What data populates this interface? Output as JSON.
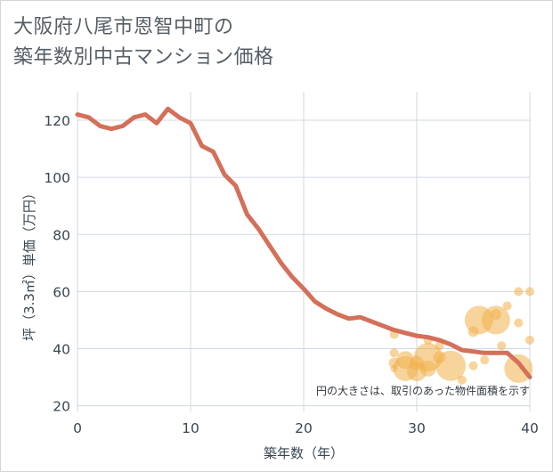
{
  "title_line1": "大阪府八尾市恩智中町の",
  "title_line2": "築年数別中古マンション価格",
  "chart_data": {
    "type": "line+scatter",
    "xlabel": "築年数（年）",
    "ylabel": "坪（3.3㎡）単価（万円）",
    "xlim": [
      0,
      40
    ],
    "ylim": [
      18,
      130
    ],
    "xticks": [
      0,
      10,
      20,
      30,
      40
    ],
    "yticks": [
      20,
      40,
      60,
      80,
      100,
      120
    ],
    "grid": true,
    "annotation": "円の大きさは、取引のあった物件面積を示す",
    "line_color": "#d4705a",
    "bubble_color": "#f0b04a",
    "line": {
      "x": [
        0,
        1,
        2,
        3,
        4,
        5,
        6,
        7,
        8,
        9,
        10,
        11,
        12,
        13,
        14,
        15,
        16,
        17,
        18,
        19,
        20,
        21,
        22,
        23,
        24,
        25,
        26,
        27,
        28,
        29,
        30,
        31,
        32,
        33,
        34,
        35,
        36,
        37,
        38,
        39,
        40
      ],
      "y": [
        122,
        121,
        118,
        117,
        118,
        121,
        122,
        119,
        124,
        121,
        119,
        111,
        109,
        101,
        97,
        87,
        82,
        76,
        70,
        65,
        61,
        56.5,
        54,
        52,
        50.5,
        51,
        49.5,
        48,
        46.5,
        45.5,
        44.5,
        44,
        43,
        41.5,
        39.5,
        39,
        38.5,
        38.5,
        38.5,
        35,
        30
      ]
    },
    "bubbles": [
      {
        "x": 28,
        "y": 45,
        "size": 5
      },
      {
        "x": 28,
        "y": 38.5,
        "size": 5
      },
      {
        "x": 28,
        "y": 35,
        "size": 6
      },
      {
        "x": 28,
        "y": 33,
        "size": 4
      },
      {
        "x": 29,
        "y": 36,
        "size": 10
      },
      {
        "x": 29,
        "y": 33,
        "size": 14
      },
      {
        "x": 30,
        "y": 32,
        "size": 11
      },
      {
        "x": 30,
        "y": 35,
        "size": 8
      },
      {
        "x": 31,
        "y": 37,
        "size": 16
      },
      {
        "x": 31,
        "y": 43,
        "size": 5
      },
      {
        "x": 31,
        "y": 33,
        "size": 9
      },
      {
        "x": 32,
        "y": 41,
        "size": 5
      },
      {
        "x": 32,
        "y": 37,
        "size": 7
      },
      {
        "x": 33,
        "y": 34,
        "size": 17
      },
      {
        "x": 34,
        "y": 29,
        "size": 5
      },
      {
        "x": 35,
        "y": 46,
        "size": 6
      },
      {
        "x": 35,
        "y": 34,
        "size": 5
      },
      {
        "x": 35.5,
        "y": 50,
        "size": 16
      },
      {
        "x": 36,
        "y": 36,
        "size": 5
      },
      {
        "x": 37,
        "y": 50,
        "size": 16
      },
      {
        "x": 37,
        "y": 52,
        "size": 6
      },
      {
        "x": 37.5,
        "y": 41,
        "size": 5
      },
      {
        "x": 38,
        "y": 55,
        "size": 5
      },
      {
        "x": 39,
        "y": 60,
        "size": 5
      },
      {
        "x": 39,
        "y": 49,
        "size": 5
      },
      {
        "x": 39,
        "y": 33,
        "size": 16
      },
      {
        "x": 40,
        "y": 60,
        "size": 5
      },
      {
        "x": 40,
        "y": 43,
        "size": 5
      }
    ]
  }
}
